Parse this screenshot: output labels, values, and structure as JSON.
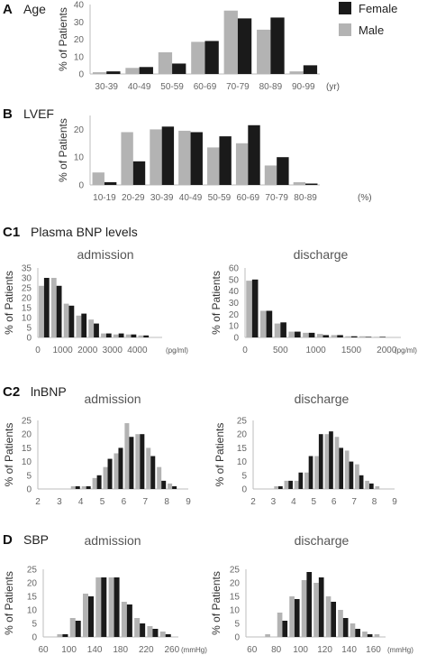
{
  "legend": {
    "female": {
      "label": "Female",
      "color": "#1a1a1a"
    },
    "male": {
      "label": "Male",
      "color": "#b3b3b3"
    }
  },
  "panels": {
    "A": {
      "letter": "A",
      "title": "Age"
    },
    "B": {
      "letter": "B",
      "title": "LVEF"
    },
    "C1": {
      "letter": "C1",
      "title": "Plasma BNP levels"
    },
    "C2": {
      "letter": "C2",
      "title": "lnBNP"
    },
    "D": {
      "letter": "D",
      "title": "SBP"
    }
  },
  "chart_data": [
    {
      "id": "age",
      "panel": "A",
      "type": "bar",
      "title": "Age",
      "ylabel": "% of Patients",
      "unit": "(yr)",
      "ylim": [
        0,
        40
      ],
      "yticks": [
        0,
        10,
        20,
        30,
        40
      ],
      "categories": [
        "30-39",
        "40-49",
        "50-59",
        "60-69",
        "70-79",
        "80-89",
        "90-99"
      ],
      "series": [
        {
          "name": "Male",
          "color": "#b3b3b3",
          "values": [
            1,
            3.5,
            12.5,
            18.5,
            36.5,
            25.5,
            1.5
          ]
        },
        {
          "name": "Female",
          "color": "#1a1a1a",
          "values": [
            1.5,
            4,
            6,
            19,
            32,
            32.5,
            5
          ]
        }
      ]
    },
    {
      "id": "lvef",
      "panel": "B",
      "type": "bar",
      "title": "LVEF",
      "ylabel": "% of Patients",
      "unit": "(%)",
      "ylim": [
        0,
        25
      ],
      "yticks": [
        0,
        10,
        20
      ],
      "categories": [
        "10-19",
        "20-29",
        "30-39",
        "40-49",
        "50-59",
        "60-69",
        "70-79",
        "80-89"
      ],
      "series": [
        {
          "name": "Male",
          "color": "#b3b3b3",
          "values": [
            4.5,
            19,
            20,
            19.5,
            13.5,
            15,
            7,
            1
          ]
        },
        {
          "name": "Female",
          "color": "#1a1a1a",
          "values": [
            1,
            8.5,
            21,
            19,
            17.5,
            21.5,
            10,
            0.5
          ]
        }
      ]
    },
    {
      "id": "bnp-admission",
      "panel": "C1",
      "type": "bar",
      "title": "admission",
      "ylabel": "% of Patients",
      "unit": "(pg/ml)",
      "ylim": [
        0,
        35
      ],
      "yticks": [
        0,
        5,
        10,
        15,
        20,
        25,
        30,
        35
      ],
      "xlim": [
        0,
        5000
      ],
      "xticks": [
        0,
        1000,
        2000,
        3000,
        4000
      ],
      "bin_width": 500,
      "x": [
        0,
        500,
        1000,
        1500,
        2000,
        2500,
        3000,
        3500,
        4000
      ],
      "series": [
        {
          "name": "Male",
          "color": "#b3b3b3",
          "values": [
            26,
            30,
            17,
            11,
            9,
            2,
            1.5,
            1.5,
            1
          ]
        },
        {
          "name": "Female",
          "color": "#1a1a1a",
          "values": [
            30,
            26,
            16,
            12,
            7,
            2,
            2,
            1.5,
            1
          ]
        }
      ]
    },
    {
      "id": "bnp-discharge",
      "panel": "C1",
      "type": "bar",
      "title": "discharge",
      "ylabel": "% of Patients",
      "unit": "(pg/ml)",
      "ylim": [
        0,
        60
      ],
      "yticks": [
        0,
        10,
        20,
        30,
        40,
        50,
        60
      ],
      "xlim": [
        0,
        2200
      ],
      "xticks": [
        0,
        500,
        1000,
        1500,
        2000
      ],
      "bin_width": 200,
      "x": [
        0,
        200,
        400,
        600,
        800,
        1000,
        1200,
        1400,
        1600,
        1800
      ],
      "series": [
        {
          "name": "Male",
          "color": "#b3b3b3",
          "values": [
            49,
            23,
            12,
            5,
            4,
            3,
            2,
            1,
            1,
            0.5
          ]
        },
        {
          "name": "Female",
          "color": "#1a1a1a",
          "values": [
            50,
            23,
            13,
            5,
            4,
            2,
            2,
            1,
            0.5,
            0.5
          ]
        }
      ]
    },
    {
      "id": "lnbnp-admission",
      "panel": "C2",
      "type": "bar",
      "title": "admission",
      "ylabel": "% of Patients",
      "ylim": [
        0,
        25
      ],
      "yticks": [
        0,
        5,
        10,
        15,
        20,
        25
      ],
      "xlim": [
        2,
        9
      ],
      "xticks": [
        2,
        3,
        4,
        5,
        6,
        7,
        8,
        9
      ],
      "bin_width": 0.5,
      "x": [
        3.5,
        4,
        4.5,
        5,
        5.5,
        6,
        6.5,
        7,
        7.5,
        8
      ],
      "series": [
        {
          "name": "Male",
          "color": "#b3b3b3",
          "values": [
            1,
            1,
            4,
            8,
            13,
            24,
            20,
            15,
            8,
            2
          ]
        },
        {
          "name": "Female",
          "color": "#1a1a1a",
          "values": [
            1,
            1,
            5,
            11,
            15,
            19,
            20,
            12,
            3,
            1
          ]
        }
      ]
    },
    {
      "id": "lnbnp-discharge",
      "panel": "C2",
      "type": "bar",
      "title": "discharge",
      "ylabel": "% of Patients",
      "ylim": [
        0,
        25
      ],
      "yticks": [
        0,
        5,
        10,
        15,
        20,
        25
      ],
      "xlim": [
        2,
        9
      ],
      "xticks": [
        2,
        3,
        4,
        5,
        6,
        7,
        8,
        9
      ],
      "bin_width": 0.5,
      "x": [
        3,
        3.5,
        4,
        4.5,
        5,
        5.5,
        6,
        6.5,
        7,
        7.5,
        8
      ],
      "series": [
        {
          "name": "Male",
          "color": "#b3b3b3",
          "values": [
            1,
            3,
            3,
            6,
            12,
            20,
            19,
            14,
            9,
            3,
            1
          ]
        },
        {
          "name": "Female",
          "color": "#1a1a1a",
          "values": [
            1,
            3,
            6,
            12,
            20,
            21,
            15,
            10,
            5,
            2,
            0
          ]
        }
      ]
    },
    {
      "id": "sbp-admission",
      "panel": "D",
      "type": "bar",
      "title": "admission",
      "ylabel": "% of Patients",
      "unit": "(mmHg)",
      "ylim": [
        0,
        25
      ],
      "yticks": [
        0,
        5,
        10,
        15,
        20,
        25
      ],
      "xlim": [
        60,
        270
      ],
      "xticks": [
        60,
        100,
        140,
        180,
        220,
        260
      ],
      "bin_width": 20,
      "x": [
        80,
        100,
        120,
        140,
        160,
        180,
        200,
        220,
        240
      ],
      "series": [
        {
          "name": "Male",
          "color": "#b3b3b3",
          "values": [
            1,
            7,
            16,
            22,
            22,
            13,
            7,
            4,
            2
          ]
        },
        {
          "name": "Female",
          "color": "#1a1a1a",
          "values": [
            1,
            6,
            15,
            22,
            22,
            12,
            5,
            3,
            1
          ]
        }
      ]
    },
    {
      "id": "sbp-discharge",
      "panel": "D",
      "type": "bar",
      "title": "discharge",
      "ylabel": "% of Patients",
      "unit": "(mmHg)",
      "ylim": [
        0,
        25
      ],
      "yticks": [
        0,
        5,
        10,
        15,
        20,
        25
      ],
      "xlim": [
        55,
        170
      ],
      "xticks": [
        60,
        80,
        100,
        120,
        140,
        160
      ],
      "bin_width": 10,
      "x": [
        60,
        70,
        80,
        90,
        100,
        110,
        120,
        130,
        140,
        150,
        160
      ],
      "series": [
        {
          "name": "Male",
          "color": "#b3b3b3",
          "values": [
            0,
            1,
            9,
            15,
            21,
            20,
            15,
            10,
            5,
            2,
            1
          ]
        },
        {
          "name": "Female",
          "color": "#1a1a1a",
          "values": [
            0,
            0,
            6,
            14,
            24,
            22,
            13,
            7,
            3,
            1,
            0
          ]
        }
      ]
    }
  ]
}
